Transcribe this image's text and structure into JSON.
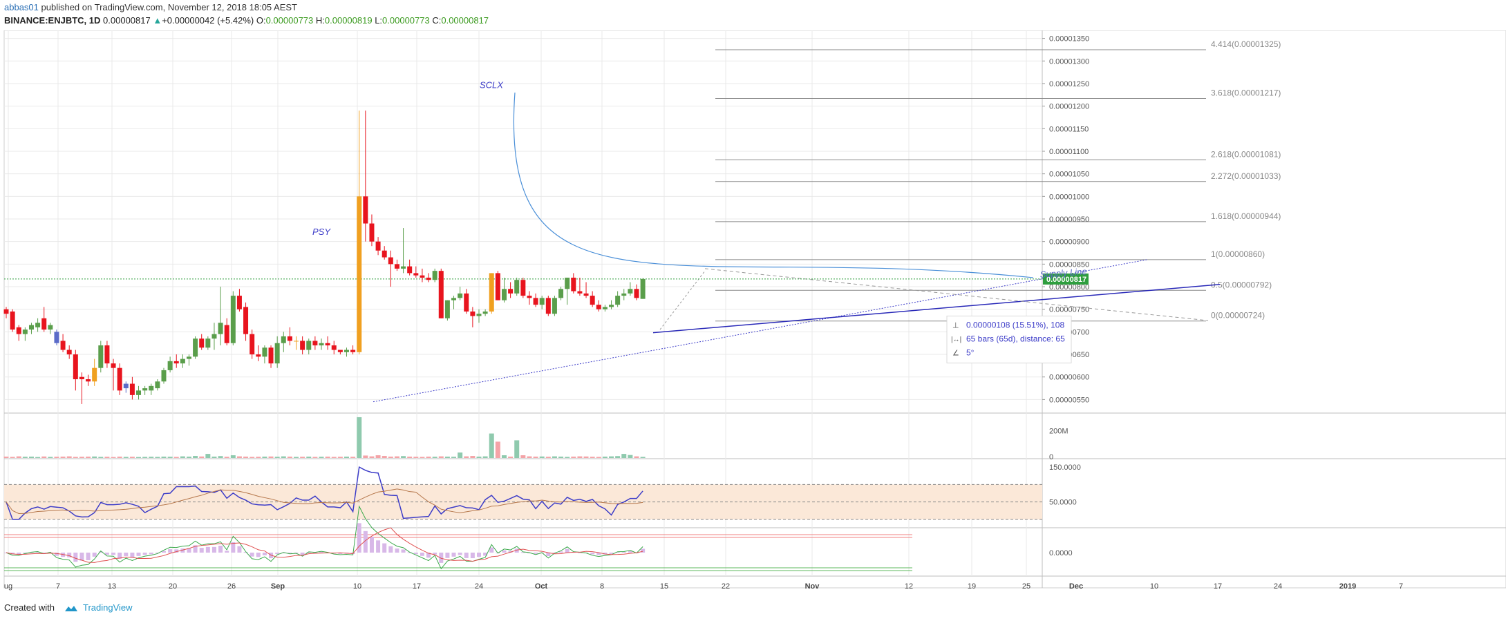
{
  "header": {
    "author": "abbas01",
    "published_text": " published on TradingView.com, November 12, 2018 18:05 AEST",
    "symbol": "BINANCE:ENJBTC, 1D",
    "last": "0.00000817",
    "change_arrow": "▲",
    "change": "+0.00000042 (+5.42%)",
    "open_label": "O:",
    "open": "0.00000773",
    "high_label": "H:",
    "high": "0.00000819",
    "low_label": "L:",
    "low": "0.00000773",
    "close_label": "C:",
    "close": "0.00000817"
  },
  "footer": {
    "created_with": "Created with",
    "brand": "TradingView"
  },
  "colors": {
    "up": "#5a9e4b",
    "down": "#e8141e",
    "orange": "#f0a020",
    "violet": "#5b6bc8",
    "rsi": "#3c3cc8",
    "rsi_ma": "#b5764a",
    "grid": "#e9e9e9",
    "price_tag": "#2e9e3e"
  },
  "chart_data": {
    "type": "candlestick",
    "price_axis": {
      "ticks": [
        "0.00001350",
        "0.00001300",
        "0.00001250",
        "0.00001200",
        "0.00001150",
        "0.00001100",
        "0.00001050",
        "0.00001000",
        "0.00000950",
        "0.00000900",
        "0.00000850",
        "0.00000800",
        "0.00000750",
        "0.00000700",
        "0.00000650",
        "0.00000600",
        "0.00000550"
      ],
      "range": [
        5.2e-06,
        1.38e-05
      ],
      "current_price_tag": "0.00000817"
    },
    "time_axis": {
      "labels": [
        "ug",
        "7",
        "13",
        "20",
        "26",
        "Sep",
        "10",
        "17",
        "24",
        "Oct",
        "8",
        "15",
        "22",
        "Nov",
        "12",
        "19",
        "25",
        "Dec",
        "10",
        "17",
        "24",
        "2019",
        "7"
      ]
    },
    "candles": [
      [
        7.5,
        7.55,
        7.3,
        7.4
      ],
      [
        7.45,
        7.5,
        7.0,
        7.05
      ],
      [
        7.1,
        7.15,
        6.8,
        6.95
      ],
      [
        6.95,
        7.1,
        6.8,
        7.05
      ],
      [
        7.05,
        7.2,
        6.95,
        7.15
      ],
      [
        7.1,
        7.3,
        7.0,
        7.2
      ],
      [
        7.3,
        7.55,
        7.0,
        7.05
      ],
      [
        7.05,
        7.2,
        6.95,
        7.15
      ],
      [
        7.0,
        7.05,
        6.7,
        6.75
      ],
      [
        6.8,
        6.95,
        6.55,
        6.6
      ],
      [
        6.6,
        6.7,
        6.4,
        6.5
      ],
      [
        6.5,
        6.6,
        5.7,
        5.95
      ],
      [
        6.0,
        6.1,
        5.4,
        5.95
      ],
      [
        5.95,
        6.05,
        5.8,
        5.9
      ],
      [
        5.9,
        6.4,
        5.8,
        6.2
      ],
      [
        6.2,
        6.8,
        6.1,
        6.7
      ],
      [
        6.7,
        6.8,
        6.2,
        6.3
      ],
      [
        6.3,
        6.4,
        5.7,
        6.2
      ],
      [
        6.2,
        6.3,
        5.6,
        5.7
      ],
      [
        5.75,
        5.9,
        5.65,
        5.85
      ],
      [
        5.85,
        6.0,
        5.5,
        5.6
      ],
      [
        5.6,
        5.8,
        5.5,
        5.7
      ],
      [
        5.7,
        5.8,
        5.6,
        5.75
      ],
      [
        5.7,
        5.85,
        5.6,
        5.8
      ],
      [
        5.75,
        5.95,
        5.7,
        5.9
      ],
      [
        5.9,
        6.2,
        5.85,
        6.15
      ],
      [
        6.15,
        6.45,
        6.1,
        6.35
      ],
      [
        6.35,
        6.5,
        6.2,
        6.3
      ],
      [
        6.3,
        6.5,
        6.2,
        6.4
      ],
      [
        6.4,
        6.5,
        6.25,
        6.45
      ],
      [
        6.45,
        6.9,
        6.4,
        6.85
      ],
      [
        6.85,
        6.95,
        6.6,
        6.65
      ],
      [
        6.65,
        6.9,
        6.6,
        6.85
      ],
      [
        6.85,
        7.2,
        6.6,
        6.95
      ],
      [
        6.95,
        8.0,
        6.7,
        7.2
      ],
      [
        7.15,
        7.3,
        6.7,
        6.75
      ],
      [
        6.75,
        7.9,
        6.7,
        7.8
      ],
      [
        7.8,
        7.95,
        7.45,
        7.5
      ],
      [
        7.55,
        7.65,
        6.8,
        6.95
      ],
      [
        6.95,
        7.05,
        6.4,
        6.5
      ],
      [
        6.5,
        6.7,
        6.35,
        6.45
      ],
      [
        6.45,
        6.7,
        6.3,
        6.65
      ],
      [
        6.65,
        6.7,
        6.2,
        6.3
      ],
      [
        6.3,
        6.9,
        6.2,
        6.75
      ],
      [
        6.75,
        7.0,
        6.55,
        6.9
      ],
      [
        6.9,
        7.1,
        6.7,
        6.8
      ],
      [
        6.8,
        6.9,
        6.6,
        6.8
      ],
      [
        6.8,
        6.9,
        6.5,
        6.6
      ],
      [
        6.6,
        6.85,
        6.5,
        6.8
      ],
      [
        6.8,
        6.9,
        6.6,
        6.7
      ],
      [
        6.7,
        6.85,
        6.6,
        6.75
      ],
      [
        6.75,
        6.9,
        6.6,
        6.7
      ],
      [
        6.7,
        6.8,
        6.5,
        6.6
      ],
      [
        6.6,
        6.6,
        6.5,
        6.55
      ],
      [
        6.55,
        6.65,
        6.45,
        6.6
      ],
      [
        6.6,
        6.7,
        6.5,
        6.55
      ],
      [
        6.55,
        11.9,
        6.5,
        10.0
      ],
      [
        10.0,
        11.9,
        9.0,
        9.4
      ],
      [
        9.4,
        9.6,
        8.9,
        9.0
      ],
      [
        9.0,
        9.1,
        8.7,
        8.8
      ],
      [
        8.8,
        8.9,
        8.6,
        8.65
      ],
      [
        8.65,
        8.8,
        8.0,
        8.5
      ],
      [
        8.5,
        8.6,
        8.35,
        8.4
      ],
      [
        8.4,
        9.3,
        8.3,
        8.45
      ],
      [
        8.45,
        8.6,
        8.25,
        8.3
      ],
      [
        8.3,
        8.45,
        8.2,
        8.25
      ],
      [
        8.25,
        8.4,
        8.1,
        8.2
      ],
      [
        8.2,
        8.3,
        8.1,
        8.15
      ],
      [
        8.15,
        8.4,
        8.1,
        8.35
      ],
      [
        8.35,
        8.4,
        7.3,
        7.3
      ],
      [
        7.3,
        7.7,
        7.25,
        7.7
      ],
      [
        7.7,
        7.8,
        7.5,
        7.75
      ],
      [
        7.75,
        8.0,
        7.7,
        7.85
      ],
      [
        7.85,
        7.95,
        7.4,
        7.45
      ],
      [
        7.45,
        7.55,
        7.1,
        7.35
      ],
      [
        7.35,
        7.5,
        7.2,
        7.4
      ],
      [
        7.4,
        7.5,
        7.35,
        7.45
      ],
      [
        7.45,
        8.3,
        7.4,
        8.3
      ],
      [
        8.3,
        8.35,
        7.7,
        7.7
      ],
      [
        7.7,
        8.2,
        7.65,
        7.95
      ],
      [
        7.95,
        8.1,
        7.75,
        7.85
      ],
      [
        7.85,
        8.2,
        7.8,
        8.15
      ],
      [
        8.15,
        8.2,
        7.75,
        7.8
      ],
      [
        7.8,
        7.9,
        7.6,
        7.75
      ],
      [
        7.75,
        7.85,
        7.55,
        7.6
      ],
      [
        7.6,
        7.8,
        7.5,
        7.75
      ],
      [
        7.75,
        7.8,
        7.35,
        7.4
      ],
      [
        7.4,
        7.8,
        7.35,
        7.75
      ],
      [
        7.75,
        8.0,
        7.7,
        7.95
      ],
      [
        7.95,
        8.2,
        7.6,
        8.2
      ],
      [
        8.2,
        8.3,
        7.85,
        7.9
      ],
      [
        7.9,
        8.2,
        7.8,
        7.85
      ],
      [
        7.85,
        8.1,
        7.75,
        7.8
      ],
      [
        7.8,
        7.9,
        7.55,
        7.6
      ],
      [
        7.6,
        7.7,
        7.45,
        7.5
      ],
      [
        7.5,
        7.6,
        7.45,
        7.55
      ],
      [
        7.55,
        7.7,
        7.5,
        7.6
      ],
      [
        7.6,
        7.9,
        7.55,
        7.8
      ],
      [
        7.8,
        7.95,
        7.7,
        7.85
      ],
      [
        7.85,
        8.1,
        7.8,
        7.95
      ],
      [
        7.95,
        8.05,
        7.7,
        7.75
      ],
      [
        7.73,
        8.19,
        7.73,
        8.17
      ]
    ],
    "candle_units": "1e-6 BTC, [open, high, low, close]",
    "fib_levels": [
      {
        "label": "4.414(0.00001325)",
        "price": 13.25
      },
      {
        "label": "3.618(0.00001217)",
        "price": 12.17
      },
      {
        "label": "2.618(0.00001081)",
        "price": 10.81
      },
      {
        "label": "2.272(0.00001033)",
        "price": 10.33
      },
      {
        "label": "1.618(0.00000944)",
        "price": 9.44
      },
      {
        "label": "1(0.00000860)",
        "price": 8.6
      },
      {
        "label": "0.5(0.00000792)",
        "price": 7.92
      },
      {
        "label": "0(0.00000724)",
        "price": 7.24
      }
    ],
    "annotations": {
      "psy": "PSY",
      "sclx": "SCLX",
      "supply_line": "Supply Line",
      "measure_price": "0.00000108 (15.51%), 108",
      "measure_bars": "65 bars (65d), distance: 65",
      "measure_angle": "5°"
    },
    "volume": {
      "axis_ticks": [
        "200M",
        "0"
      ],
      "values_m": [
        10,
        8,
        12,
        9,
        10,
        7,
        11,
        8,
        9,
        10,
        12,
        8,
        9,
        10,
        11,
        8,
        9,
        7,
        10,
        8,
        9,
        7,
        8,
        9,
        8,
        10,
        9,
        8,
        12,
        10,
        15,
        11,
        30,
        10,
        14,
        9,
        20,
        12,
        10,
        8,
        9,
        10,
        11,
        9,
        12,
        10,
        8,
        9,
        10,
        8,
        9,
        10,
        8,
        9,
        10,
        9,
        300,
        18,
        12,
        20,
        15,
        10,
        12,
        14,
        10,
        9,
        8,
        10,
        9,
        12,
        10,
        9,
        40,
        12,
        15,
        10,
        12,
        180,
        120,
        20,
        10,
        130,
        20,
        12,
        10,
        11,
        9,
        12,
        10,
        8,
        10,
        12,
        11,
        9,
        8,
        10,
        12,
        14,
        30,
        22,
        12,
        8
      ]
    },
    "rsi": {
      "axis_ticks": [
        "150.0000",
        "50.0000"
      ],
      "band_levels": [
        100,
        50,
        0
      ]
    },
    "macd": {
      "axis_ticks": [
        "0.0000"
      ]
    }
  }
}
